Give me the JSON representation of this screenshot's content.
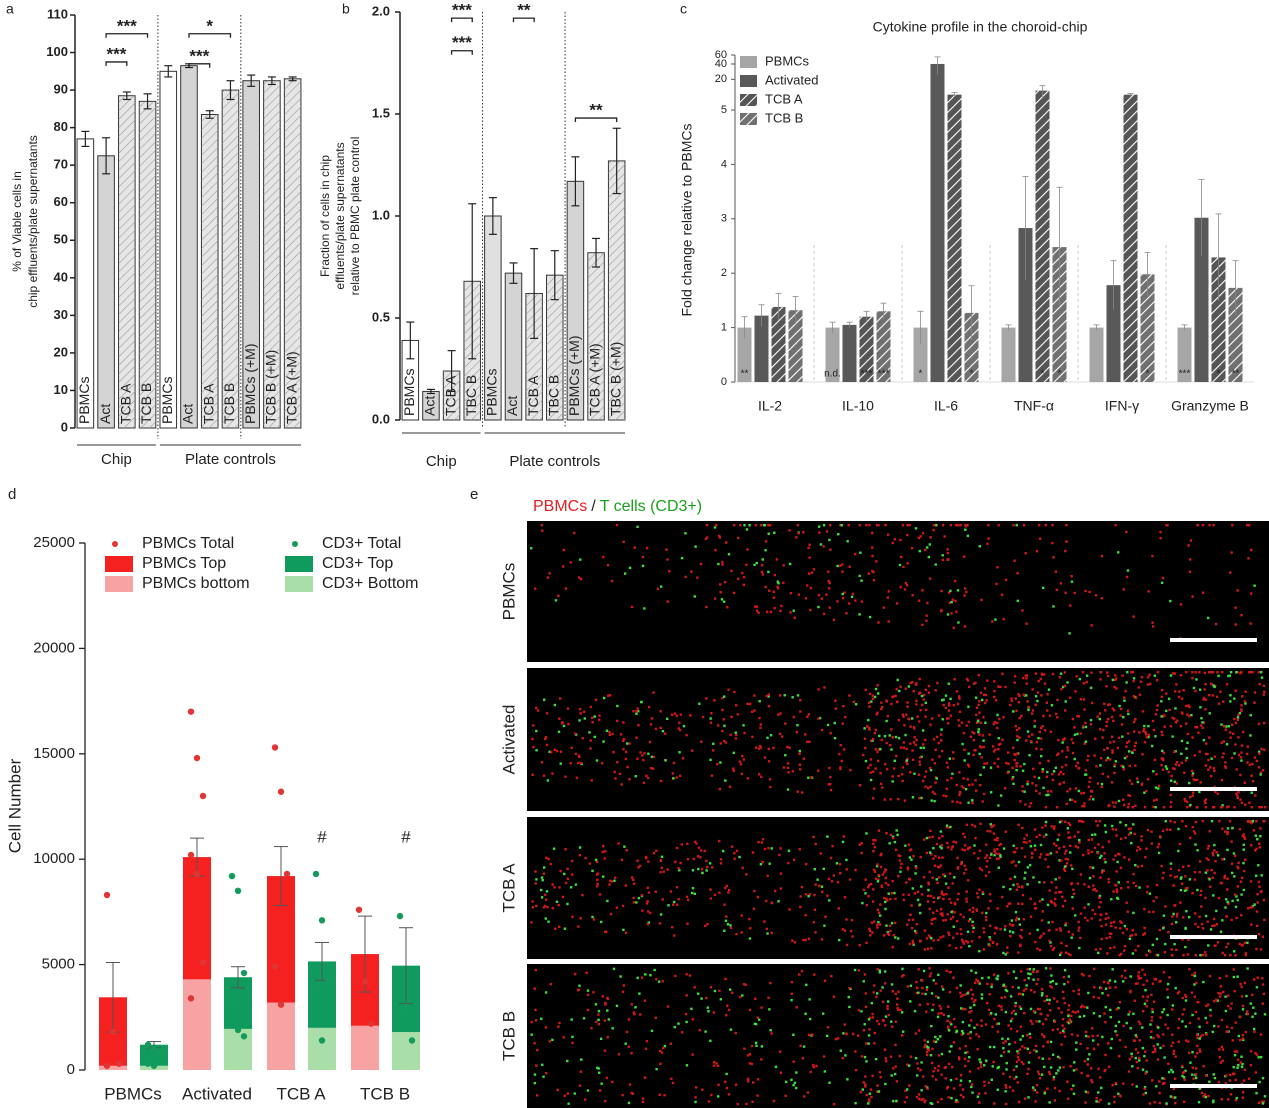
{
  "chart_data": [
    {
      "type": "bar",
      "panel": "a",
      "ylabel": [
        "% of Viable cells in",
        "chip effluents/plate supernatants"
      ],
      "categories": [
        "PBMCs",
        "Act",
        "TCB A",
        "TCB B",
        "PBMCs",
        "Act",
        "TCB A",
        "TCB B",
        "PBMCs (+M)",
        "TCB B (+M)",
        "TCB A (+M)"
      ],
      "values": [
        77,
        72.5,
        88.5,
        87,
        95,
        96.5,
        83.5,
        90,
        92.5,
        92.5,
        93
      ],
      "errors": [
        2,
        4.8,
        1,
        2,
        1.5,
        0.5,
        1,
        2.5,
        1.5,
        1,
        0.5
      ],
      "colors": [
        "#ffffff",
        "#d4d4d4",
        "#e6e6e6",
        "#e6e6e6",
        "#ffffff",
        "#d4d4d4",
        "#e6e6e6",
        "#e6e6e6",
        "#d4d4d4",
        "#e6e6e6",
        "#e6e6e6"
      ],
      "hatch": [
        false,
        false,
        true,
        true,
        false,
        false,
        true,
        true,
        false,
        true,
        true
      ],
      "ylim": [
        0,
        110
      ],
      "yticks": [
        0,
        10,
        20,
        30,
        40,
        50,
        60,
        70,
        80,
        90,
        100,
        110
      ],
      "dividers": [
        4,
        8
      ],
      "groups": [
        {
          "label": "Chip",
          "start": 0,
          "end": 3
        },
        {
          "label": "Plate controls",
          "start": 4,
          "end": 10
        }
      ],
      "annotations": [
        {
          "text": "***",
          "from": 1,
          "to": 3,
          "y": 105
        },
        {
          "text": "***",
          "from": 1,
          "to": 2,
          "y": 97.5
        },
        {
          "text": "*",
          "from": 5,
          "to": 7,
          "y": 105
        },
        {
          "text": "***",
          "from": 5,
          "to": 6,
          "y": 97
        }
      ]
    },
    {
      "type": "bar",
      "panel": "b",
      "ylabel": [
        "Fraction of cells in chip",
        "effluents/plate supernatants",
        "relative to PBMC plate control"
      ],
      "categories": [
        "PBMCs",
        "Act",
        "TCB A",
        "TBC B",
        "PBMCs",
        "Act",
        "TCB A",
        "TBC B",
        "PBMCs (+M)",
        "TCB A (+M)",
        "TBC B (+M)"
      ],
      "values": [
        0.39,
        0.14,
        0.24,
        0.68,
        1.0,
        0.72,
        0.62,
        0.71,
        1.17,
        0.82,
        1.27
      ],
      "errors": [
        0.09,
        0.01,
        0.1,
        0.38,
        0.09,
        0.05,
        0.22,
        0.12,
        0.12,
        0.07,
        0.16
      ],
      "colors": [
        "#ffffff",
        "#d4d4d4",
        "#e6e6e6",
        "#e6e6e6",
        "#e0e0e0",
        "#d4d4d4",
        "#e6e6e6",
        "#e6e6e6",
        "#d4d4d4",
        "#e6e6e6",
        "#e6e6e6"
      ],
      "hatch": [
        false,
        false,
        true,
        true,
        false,
        false,
        true,
        true,
        false,
        true,
        true
      ],
      "ylim": [
        0,
        2.0
      ],
      "yticks": [
        {
          "value": 0,
          "label": "0.0"
        },
        0.5,
        {
          "value": 1,
          "label": "1.0"
        },
        1.5,
        {
          "value": 2,
          "label": "2.0"
        }
      ],
      "dividers": [
        4,
        8
      ],
      "groups": [
        {
          "label": "Chip",
          "start": 0,
          "end": 3
        },
        {
          "label": "Plate controls",
          "start": 4,
          "end": 10
        }
      ],
      "annotations": [
        {
          "text": "***",
          "from": 2,
          "to": 3,
          "y": 1.97
        },
        {
          "text": "***",
          "from": 2,
          "to": 3,
          "y": 1.81
        },
        {
          "text": "**",
          "from": 5,
          "to": 6,
          "y": 1.97
        },
        {
          "text": "**",
          "from": 8,
          "to": 10,
          "y": 1.48
        }
      ]
    },
    {
      "type": "grouped_bar",
      "panel": "c",
      "title": "Cytokine profile in the choroid-chip",
      "ylabel": "Fold change relative to PBMCs",
      "categories": [
        "IL-2",
        "IL-10",
        "IL-6",
        "TNF-α",
        "IFN-γ",
        "Granzyme B"
      ],
      "series": [
        {
          "name": "PBMCs",
          "color": "#a6a6a6",
          "hatch": false,
          "values": [
            1.0,
            1.0,
            1.0,
            1.0,
            1.0,
            1.0
          ],
          "errors": [
            0.2,
            0.1,
            0.3,
            0.05,
            0.05,
            0.05
          ]
        },
        {
          "name": "Activated",
          "color": "#595959",
          "hatch": false,
          "values": [
            1.22,
            1.05,
            40,
            2.83,
            1.78,
            3.02
          ],
          "errors": [
            0.2,
            0.05,
            15,
            0.95,
            0.45,
            0.7
          ]
        },
        {
          "name": "TCB A",
          "color": "#555555",
          "hatch": true,
          "values": [
            1.38,
            1.2,
            10,
            12,
            10,
            2.29
          ],
          "errors": [
            0.25,
            0.1,
            1,
            3,
            0.5,
            0.8
          ]
        },
        {
          "name": "TCB B",
          "color": "#707070",
          "hatch": true,
          "values": [
            1.32,
            1.3,
            1.27,
            2.48,
            1.98,
            1.73
          ],
          "errors": [
            0.25,
            0.15,
            0.5,
            1.1,
            0.4,
            0.5
          ]
        }
      ],
      "ylim": [
        0,
        60
      ],
      "ybreak": 5,
      "yticks": [
        0,
        1,
        2,
        3,
        4,
        5,
        20,
        40,
        60
      ],
      "sig_labels": [
        {
          "category": 0,
          "series": 0,
          "text": "**"
        },
        {
          "category": 1,
          "series": 0,
          "text": "n.d."
        },
        {
          "category": 1,
          "series": 2,
          "text": "***"
        },
        {
          "category": 1,
          "series": 3,
          "text": "***"
        },
        {
          "category": 2,
          "series": 0,
          "text": "*"
        },
        {
          "category": 2,
          "series": 3,
          "text": "*"
        },
        {
          "category": 3,
          "series": 2,
          "text": "*"
        },
        {
          "category": 3,
          "series": 3,
          "text": "*"
        },
        {
          "category": 4,
          "series": 3,
          "text": "*"
        },
        {
          "category": 5,
          "series": 0,
          "text": "***"
        },
        {
          "category": 5,
          "series": 2,
          "text": "*"
        },
        {
          "category": 5,
          "series": 3,
          "text": "**"
        }
      ]
    },
    {
      "type": "stacked_bar",
      "panel": "d",
      "ylabel": "Cell Number",
      "categories": [
        "PBMCs",
        "Activated",
        "TCB A",
        "TCB B"
      ],
      "series": [
        {
          "name": "PBMCs bottom",
          "stack": "PBMCs",
          "color": "#f7a3a3",
          "values": [
            200,
            4300,
            3200,
            2100
          ]
        },
        {
          "name": "PBMCs Top",
          "stack": "PBMCs",
          "color": "#f52020",
          "values": [
            3250,
            5800,
            6000,
            3400
          ],
          "errors": [
            1650,
            900,
            1400,
            1800
          ]
        },
        {
          "name": "CD3+ Bottom",
          "stack": "CD3+",
          "color": "#a9dea9",
          "values": [
            200,
            1950,
            2000,
            1800
          ]
        },
        {
          "name": "CD3+ Top",
          "stack": "CD3+",
          "color": "#0f9a5e",
          "values": [
            1000,
            2450,
            3150,
            3150
          ],
          "errors": [
            150,
            500,
            900,
            1800
          ]
        }
      ],
      "point_series": [
        {
          "name": "PBMCs Total",
          "stack": "PBMCs",
          "color": "#e03535",
          "points": [
            [
              8300,
              1800,
              300,
              200
            ],
            [
              17000,
              14800,
              13000,
              10200,
              9300,
              5100,
              3400
            ],
            [
              15300,
              13200,
              9300,
              4900,
              3100
            ],
            [
              7600,
              4200,
              2200
            ]
          ]
        },
        {
          "name": "CD3+ Total",
          "stack": "CD3+",
          "color": "#159a5e",
          "points": [
            [
              1200,
              1000,
              800,
              300,
              200
            ],
            [
              9200,
              8500,
              4600,
              3000,
              1900,
              1600
            ],
            [
              9300,
              7100,
              4200,
              3900,
              1400
            ],
            [
              7300,
              3000,
              1400
            ]
          ]
        }
      ],
      "ylim": [
        0,
        25000
      ],
      "yticks": [
        0,
        5000,
        10000,
        15000,
        20000,
        25000
      ],
      "annotations": [
        {
          "text": "#",
          "category": 2,
          "stack": "CD3+",
          "y": 11000
        },
        {
          "text": "#",
          "category": 3,
          "stack": "CD3+",
          "y": 11000
        }
      ]
    }
  ],
  "images": {
    "panel": "e",
    "title_parts": [
      {
        "text": "PBMCs",
        "color": "#e02020"
      },
      {
        "text": "/",
        "color": "#222222"
      },
      {
        "text": "T cells (CD3+)",
        "color": "#1aa01a"
      }
    ],
    "rows": [
      "PBMCs",
      "Activated",
      "TCB A",
      "TCB B"
    ]
  }
}
